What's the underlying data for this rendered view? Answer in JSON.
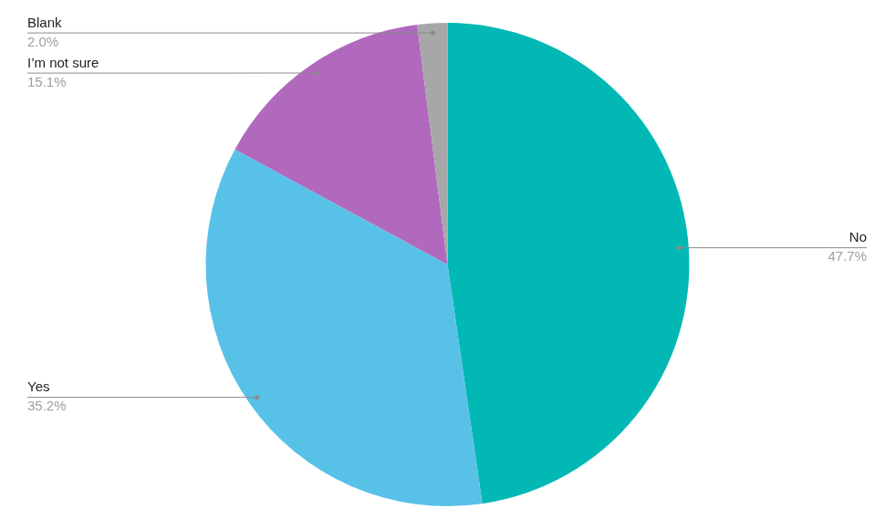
{
  "chart_data": {
    "type": "pie",
    "categories": [
      "No",
      "Yes",
      "I’m not sure",
      "Blank"
    ],
    "values": [
      47.7,
      35.2,
      15.1,
      2.0
    ],
    "value_labels": [
      "47.7%",
      "35.2%",
      "15.1%",
      "2.0%"
    ],
    "colors": [
      "#02b8b5",
      "#58c1e8",
      "#b169bd",
      "#a7a7a9"
    ],
    "data_labels": true
  }
}
